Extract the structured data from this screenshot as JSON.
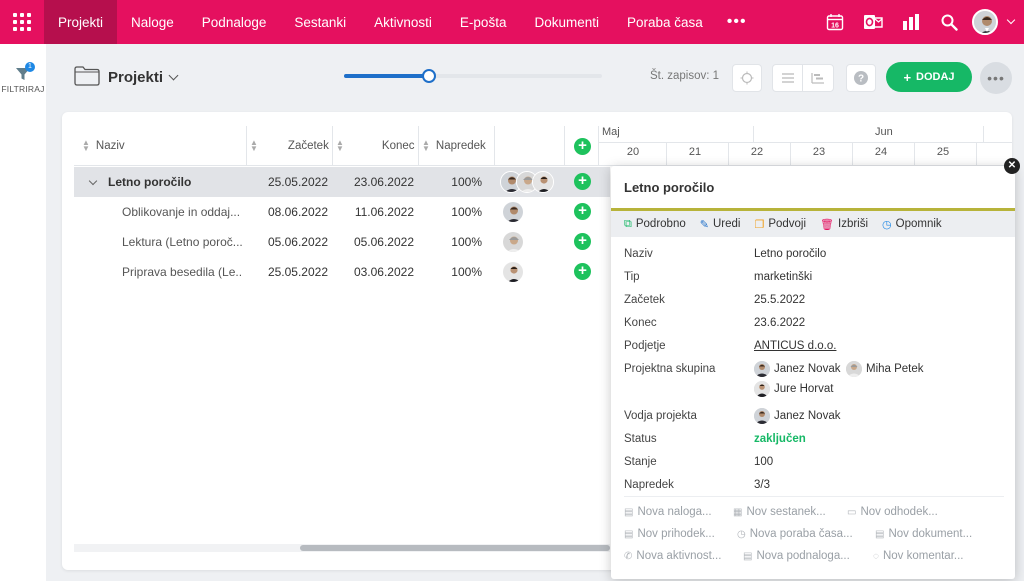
{
  "nav": {
    "items": [
      "Projekti",
      "Naloge",
      "Podnaloge",
      "Sestanki",
      "Aktivnosti",
      "E-pošta",
      "Dokumenti",
      "Poraba časa"
    ],
    "more": "•••",
    "calendar_day": "16"
  },
  "sidebar": {
    "filter_label": "FILTRIRAJ",
    "filter_count": "1"
  },
  "header": {
    "title": "Projekti",
    "zoom_level": 0.33,
    "record_count": "Št. zapisov: 1",
    "add_label": "DODAJ",
    "more": "•••"
  },
  "grid": {
    "columns": [
      "Naziv",
      "Začetek",
      "Konec",
      "Napredek"
    ],
    "rows": [
      {
        "name": "Letno poročilo",
        "start": "25.05.2022",
        "end": "23.06.2022",
        "progress": "100%"
      },
      {
        "name": "Oblikovanje in oddaj...",
        "start": "08.06.2022",
        "end": "11.06.2022",
        "progress": "100%"
      },
      {
        "name": "Lektura (Letno poroč...",
        "start": "05.06.2022",
        "end": "05.06.2022",
        "progress": "100%"
      },
      {
        "name": "Priprava besedila (Le...",
        "start": "25.05.2022",
        "end": "03.06.2022",
        "progress": "100%"
      }
    ]
  },
  "gantt": {
    "months": [
      "Maj",
      "Jun"
    ],
    "days": [
      "20",
      "21",
      "22",
      "23",
      "24",
      "25"
    ]
  },
  "popover": {
    "title": "Letno poročilo",
    "actions": [
      "Podrobno",
      "Uredi",
      "Podvoji",
      "Izbriši",
      "Opomnik"
    ],
    "fields": [
      {
        "label": "Naziv",
        "value": "Letno poročilo"
      },
      {
        "label": "Tip",
        "value": "marketinški"
      },
      {
        "label": "Začetek",
        "value": "25.5.2022"
      },
      {
        "label": "Konec",
        "value": "23.6.2022"
      },
      {
        "label": "Podjetje",
        "value": "ANTICUS d.o.o."
      }
    ],
    "team_label": "Projektna skupina",
    "team": [
      "Janez Novak",
      "Miha Petek",
      "Jure Horvat"
    ],
    "lead_label": "Vodja projekta",
    "lead": "Janez Novak",
    "status_label": "Status",
    "status": "zaključen",
    "state_label": "Stanje",
    "state": "100",
    "progress_label": "Napredek",
    "progress": "3/3",
    "quick_links": [
      "Nova naloga...",
      "Nov sestanek...",
      "Nov odhodek...",
      "Nov prihodek...",
      "Nova poraba časa...",
      "Nov dokument...",
      "Nova aktivnost...",
      "Nova podnaloga...",
      "Nov komentar..."
    ]
  },
  "colors": {
    "brand": "#e5105f",
    "brand_dark": "#b60f4d",
    "success": "#16b866",
    "accent": "#1e6fc9"
  }
}
